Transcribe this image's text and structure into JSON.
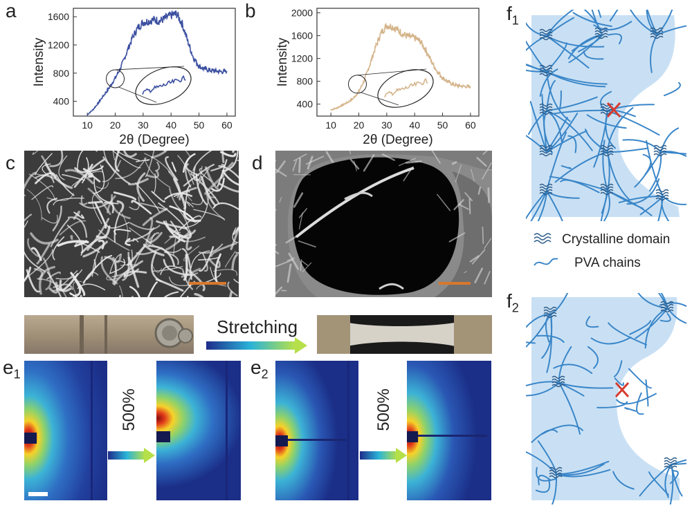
{
  "panel_labels": {
    "a": "a",
    "b": "b",
    "c": "c",
    "d": "d",
    "e1_main": "e",
    "e1_sub": "1",
    "e2_main": "e",
    "e2_sub": "2",
    "f1_main": "f",
    "f1_sub": "1",
    "f2_main": "f",
    "f2_sub": "2"
  },
  "stretch_label": "Stretching",
  "strain_label": "500%",
  "legend": {
    "crystalline": "Crystalline domain",
    "chains": "PVA  chains"
  },
  "colors": {
    "series_a": "#3b4fa0",
    "series_b": "#d4b48a",
    "scale_bar": "#d9782d",
    "network": "#3a86c8",
    "break_mark": "#d63b2f",
    "saxs_bg": "#1d3a9a"
  },
  "chart_data": [
    {
      "type": "line",
      "panel": "a",
      "xlabel": "2θ (Degree)",
      "ylabel": "Intensity",
      "xlim": [
        5,
        63
      ],
      "ylim": [
        190,
        1720
      ],
      "xticks": [
        10,
        20,
        30,
        40,
        50,
        60
      ],
      "yticks": [
        400,
        800,
        1200,
        1600
      ],
      "series": [
        {
          "x": [
            10,
            12,
            14,
            16,
            18,
            20,
            22,
            24,
            26,
            28,
            30,
            32,
            34,
            36,
            38,
            40,
            42,
            44,
            46,
            48,
            50,
            52,
            54,
            56,
            58,
            60
          ],
          "y": [
            210,
            280,
            380,
            490,
            600,
            730,
            880,
            1080,
            1290,
            1440,
            1520,
            1540,
            1560,
            1540,
            1580,
            1620,
            1640,
            1500,
            1250,
            1020,
            900,
            860,
            840,
            830,
            820,
            820
          ]
        }
      ]
    },
    {
      "type": "line",
      "panel": "b",
      "xlabel": "2θ (Degree)",
      "ylabel": "Intensity",
      "xlim": [
        5,
        63
      ],
      "ylim": [
        190,
        2080
      ],
      "xticks": [
        10,
        20,
        30,
        40,
        50,
        60
      ],
      "yticks": [
        400,
        800,
        1200,
        1600,
        2000
      ],
      "series": [
        {
          "x": [
            10,
            12,
            14,
            16,
            18,
            20,
            22,
            24,
            26,
            28,
            30,
            32,
            34,
            36,
            38,
            40,
            42,
            44,
            46,
            48,
            50,
            52,
            54,
            56,
            58,
            60
          ],
          "y": [
            300,
            330,
            380,
            430,
            500,
            620,
            820,
            1100,
            1400,
            1650,
            1780,
            1760,
            1700,
            1620,
            1580,
            1560,
            1500,
            1350,
            1150,
            980,
            860,
            790,
            740,
            720,
            710,
            700
          ]
        }
      ]
    }
  ]
}
